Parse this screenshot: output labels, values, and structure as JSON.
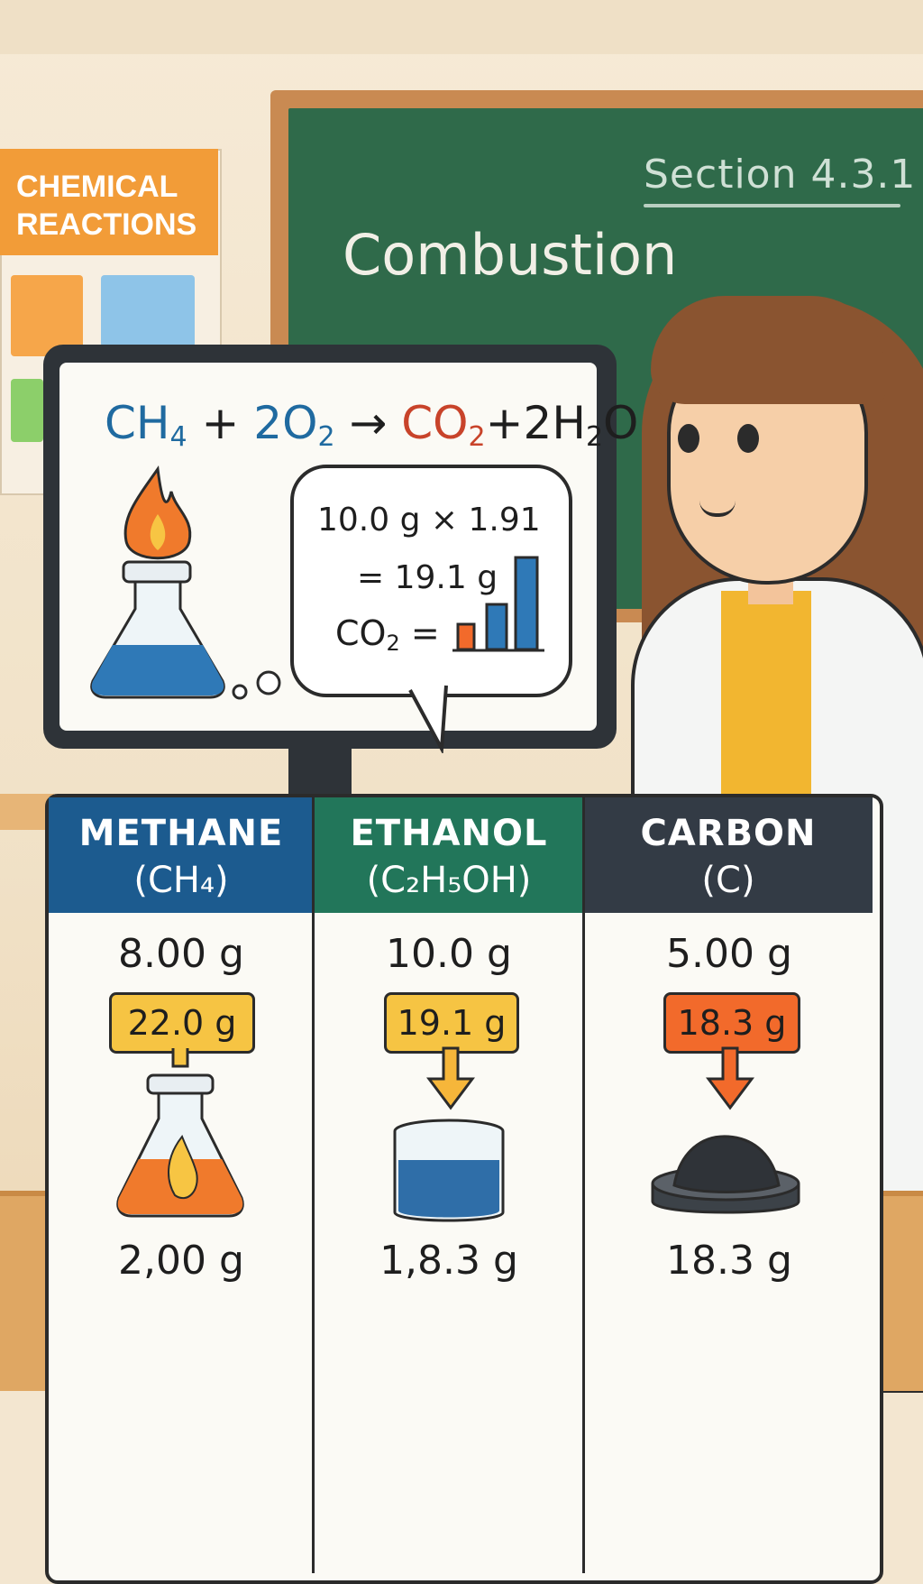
{
  "board": {
    "section": "Section 4.3.1",
    "title": "Combustion"
  },
  "poster": {
    "title_line1": "CHEMICAL",
    "title_line2": "REACTIONS"
  },
  "equation": {
    "reactant1": "CH",
    "reactant1_sub": "4",
    "plus1": " + ",
    "reactant2": "2O",
    "reactant2_sub": "2",
    "arrow": " → ",
    "product1": "CO",
    "product1_sub": "2",
    "plus2": "+",
    "product2a": "2H",
    "product2_sub": "2",
    "product2b": "O"
  },
  "bubble": {
    "line1": "10.0 g × 1.91",
    "line2": "= 19.1 g",
    "line3_label": "CO",
    "line3_sub": "2",
    "line3_eq": " ="
  },
  "columns": [
    {
      "name": "METHANE",
      "formula": "(CH₄)",
      "mass_top": "8.00 g",
      "tag": "22.0 g",
      "mass_bottom": "2,00 g",
      "tag_color": "#f6c443"
    },
    {
      "name": "ETHANOL",
      "formula": "(C₂H₅OH)",
      "mass_top": "10.0 g",
      "tag": "19.1 g",
      "mass_bottom": "1,8.3 g",
      "tag_color": "#f6c443"
    },
    {
      "name": "CARBON",
      "formula": "(C)",
      "mass_top": "5.00 g",
      "tag": "18.3 g",
      "mass_bottom": "18.3 g",
      "tag_color": "#f26a2b"
    }
  ],
  "colors": {
    "methane_header": "#1c5b8f",
    "ethanol_header": "#22765a",
    "carbon_header": "#333b45",
    "chalkboard": "#2f6a4a",
    "poster_accent": "#f29c38"
  }
}
